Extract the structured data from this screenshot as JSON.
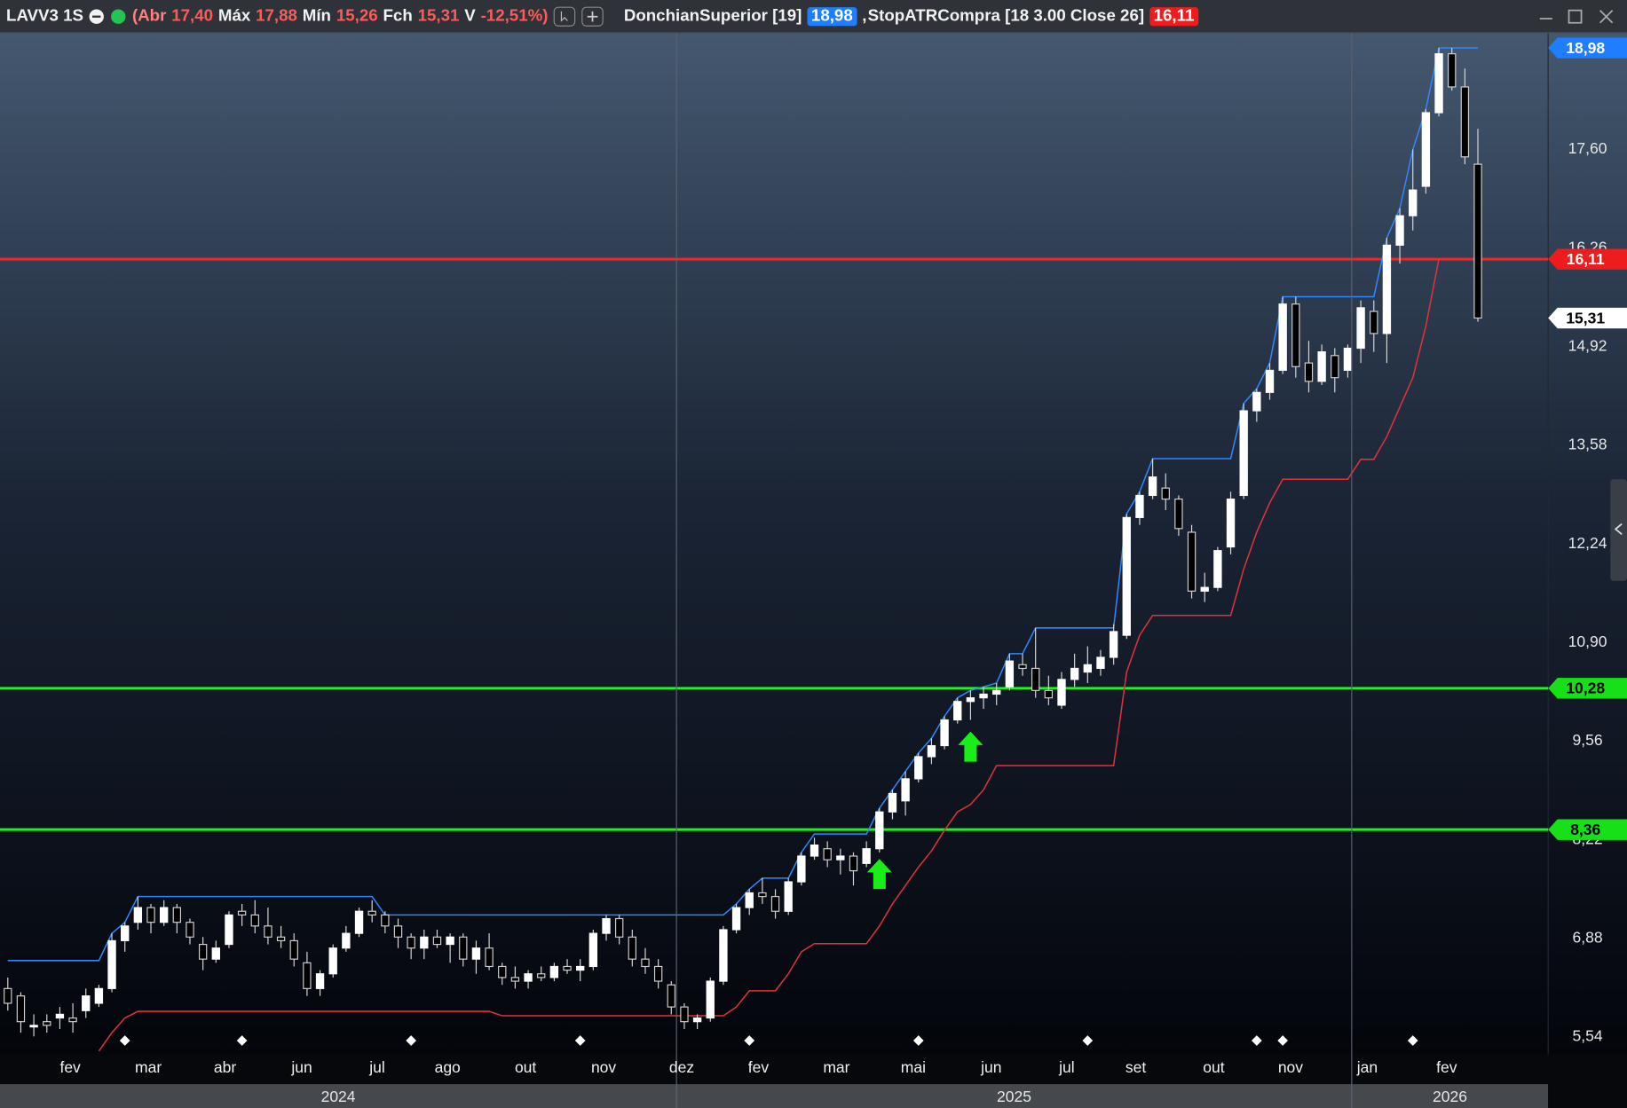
{
  "header": {
    "symbol": "LAVV3 1S",
    "open_label": "(Abr",
    "open": "17,40",
    "high_label": "Máx",
    "high": "17,88",
    "low_label": "Mín",
    "low": "15,26",
    "close_label": "Fch",
    "close": "15,31",
    "change_label": "V",
    "change": "-12,51%)",
    "separator": ","
  },
  "chart_data": {
    "type": "candlestick",
    "xlim": [
      -0.6,
      118.4
    ],
    "ylim": [
      5.31,
      19.18
    ],
    "yticks": [
      {
        "value": 5.54,
        "label": "5,54"
      },
      {
        "value": 6.88,
        "label": "6,88"
      },
      {
        "value": 8.22,
        "label": "8,22"
      },
      {
        "value": 9.56,
        "label": "9,56"
      },
      {
        "value": 10.9,
        "label": "10,90"
      },
      {
        "value": 12.24,
        "label": "12,24"
      },
      {
        "value": 13.58,
        "label": "13,58"
      },
      {
        "value": 14.92,
        "label": "14,92"
      },
      {
        "value": 16.26,
        "label": "16,26"
      },
      {
        "value": 17.6,
        "label": "17,60"
      }
    ],
    "xticks": [
      {
        "value": 4.8,
        "label": "fev"
      },
      {
        "value": 10.8,
        "label": "mar"
      },
      {
        "value": 16.7,
        "label": "abr"
      },
      {
        "value": 22.6,
        "label": "jun"
      },
      {
        "value": 28.4,
        "label": "jul"
      },
      {
        "value": 33.8,
        "label": "ago"
      },
      {
        "value": 39.8,
        "label": "out"
      },
      {
        "value": 45.8,
        "label": "nov"
      },
      {
        "value": 51.8,
        "label": "dez"
      },
      {
        "value": 57.7,
        "label": "fev"
      },
      {
        "value": 63.7,
        "label": "mar"
      },
      {
        "value": 69.6,
        "label": "mai"
      },
      {
        "value": 75.6,
        "label": "jun"
      },
      {
        "value": 81.4,
        "label": "jul"
      },
      {
        "value": 86.7,
        "label": "set"
      },
      {
        "value": 92.7,
        "label": "out"
      },
      {
        "value": 98.6,
        "label": "nov"
      },
      {
        "value": 104.5,
        "label": "jan"
      },
      {
        "value": 110.6,
        "label": "fev"
      }
    ],
    "year_ticks": [
      {
        "value": -0.6,
        "label": "2024"
      },
      {
        "value": 51.4,
        "label": "2025"
      },
      {
        "value": 103.3,
        "label": "2026"
      }
    ],
    "candles": [
      [
        6.2,
        6.35,
        5.9,
        6.0
      ],
      [
        6.1,
        6.15,
        5.6,
        5.75
      ],
      [
        5.7,
        5.85,
        5.55,
        5.7
      ],
      [
        5.75,
        5.85,
        5.6,
        5.7
      ],
      [
        5.8,
        5.95,
        5.65,
        5.85
      ],
      [
        5.8,
        6.0,
        5.6,
        5.75
      ],
      [
        5.9,
        6.2,
        5.8,
        6.1
      ],
      [
        6.0,
        6.25,
        5.95,
        6.2
      ],
      [
        6.2,
        6.95,
        6.15,
        6.85
      ],
      [
        6.85,
        7.1,
        6.7,
        7.05
      ],
      [
        7.1,
        7.45,
        7.0,
        7.3
      ],
      [
        7.3,
        7.35,
        6.95,
        7.1
      ],
      [
        7.1,
        7.4,
        7.05,
        7.3
      ],
      [
        7.3,
        7.35,
        6.95,
        7.1
      ],
      [
        7.1,
        7.15,
        6.8,
        6.9
      ],
      [
        6.8,
        6.9,
        6.45,
        6.6
      ],
      [
        6.6,
        6.85,
        6.55,
        6.75
      ],
      [
        6.8,
        7.25,
        6.75,
        7.2
      ],
      [
        7.25,
        7.35,
        7.05,
        7.2
      ],
      [
        7.2,
        7.4,
        6.95,
        7.05
      ],
      [
        7.05,
        7.3,
        6.8,
        6.9
      ],
      [
        6.9,
        7.05,
        6.75,
        6.85
      ],
      [
        6.85,
        6.95,
        6.5,
        6.6
      ],
      [
        6.55,
        6.7,
        6.1,
        6.2
      ],
      [
        6.2,
        6.45,
        6.1,
        6.4
      ],
      [
        6.4,
        6.8,
        6.35,
        6.75
      ],
      [
        6.75,
        7.05,
        6.7,
        6.95
      ],
      [
        6.95,
        7.3,
        6.9,
        7.25
      ],
      [
        7.25,
        7.4,
        7.1,
        7.2
      ],
      [
        7.2,
        7.25,
        6.95,
        7.05
      ],
      [
        7.05,
        7.15,
        6.75,
        6.9
      ],
      [
        6.9,
        6.95,
        6.6,
        6.75
      ],
      [
        6.75,
        7.0,
        6.6,
        6.9
      ],
      [
        6.9,
        7.0,
        6.75,
        6.8
      ],
      [
        6.8,
        6.95,
        6.55,
        6.9
      ],
      [
        6.9,
        6.95,
        6.5,
        6.6
      ],
      [
        6.6,
        6.85,
        6.4,
        6.75
      ],
      [
        6.75,
        6.95,
        6.45,
        6.5
      ],
      [
        6.5,
        6.55,
        6.25,
        6.35
      ],
      [
        6.35,
        6.5,
        6.2,
        6.3
      ],
      [
        6.3,
        6.45,
        6.2,
        6.4
      ],
      [
        6.4,
        6.5,
        6.3,
        6.35
      ],
      [
        6.35,
        6.55,
        6.3,
        6.5
      ],
      [
        6.5,
        6.6,
        6.4,
        6.45
      ],
      [
        6.45,
        6.6,
        6.3,
        6.5
      ],
      [
        6.5,
        7.0,
        6.45,
        6.95
      ],
      [
        6.95,
        7.2,
        6.85,
        7.15
      ],
      [
        7.15,
        7.2,
        6.8,
        6.9
      ],
      [
        6.9,
        7.0,
        6.5,
        6.6
      ],
      [
        6.6,
        6.75,
        6.4,
        6.5
      ],
      [
        6.5,
        6.6,
        6.2,
        6.3
      ],
      [
        6.25,
        6.3,
        5.85,
        5.95
      ],
      [
        5.95,
        6.0,
        5.65,
        5.75
      ],
      [
        5.75,
        5.85,
        5.65,
        5.8
      ],
      [
        5.8,
        6.35,
        5.75,
        6.3
      ],
      [
        6.3,
        7.05,
        6.25,
        7.0
      ],
      [
        7.0,
        7.35,
        6.95,
        7.3
      ],
      [
        7.3,
        7.55,
        7.2,
        7.5
      ],
      [
        7.5,
        7.7,
        7.35,
        7.45
      ],
      [
        7.45,
        7.55,
        7.15,
        7.25
      ],
      [
        7.25,
        7.7,
        7.2,
        7.65
      ],
      [
        7.65,
        8.05,
        7.6,
        8.0
      ],
      [
        8.0,
        8.25,
        7.95,
        8.15
      ],
      [
        8.1,
        8.2,
        7.85,
        7.95
      ],
      [
        7.95,
        8.1,
        7.75,
        8.0
      ],
      [
        8.0,
        8.05,
        7.6,
        7.8
      ],
      [
        7.9,
        8.2,
        7.85,
        8.1
      ],
      [
        8.1,
        8.65,
        8.05,
        8.6
      ],
      [
        8.6,
        8.9,
        8.5,
        8.85
      ],
      [
        8.75,
        9.15,
        8.55,
        9.05
      ],
      [
        9.05,
        9.4,
        9.0,
        9.35
      ],
      [
        9.35,
        9.6,
        9.25,
        9.5
      ],
      [
        9.5,
        9.9,
        9.45,
        9.85
      ],
      [
        9.85,
        10.15,
        9.8,
        10.1
      ],
      [
        10.1,
        10.25,
        9.85,
        10.15
      ],
      [
        10.15,
        10.3,
        10.0,
        10.2
      ],
      [
        10.2,
        10.35,
        10.05,
        10.25
      ],
      [
        10.3,
        10.75,
        10.25,
        10.65
      ],
      [
        10.6,
        10.75,
        10.45,
        10.55
      ],
      [
        10.55,
        11.1,
        10.15,
        10.25
      ],
      [
        10.25,
        10.45,
        10.05,
        10.15
      ],
      [
        10.05,
        10.5,
        10.0,
        10.4
      ],
      [
        10.4,
        10.75,
        10.3,
        10.55
      ],
      [
        10.5,
        10.85,
        10.35,
        10.6
      ],
      [
        10.55,
        10.8,
        10.45,
        10.7
      ],
      [
        10.7,
        11.15,
        10.6,
        11.05
      ],
      [
        11.0,
        12.65,
        10.95,
        12.6
      ],
      [
        12.6,
        12.95,
        12.5,
        12.9
      ],
      [
        12.9,
        13.4,
        12.85,
        13.15
      ],
      [
        13.0,
        13.2,
        12.7,
        12.85
      ],
      [
        12.85,
        12.9,
        12.35,
        12.45
      ],
      [
        12.4,
        12.5,
        11.5,
        11.6
      ],
      [
        11.6,
        11.85,
        11.45,
        11.65
      ],
      [
        11.65,
        12.2,
        11.6,
        12.15
      ],
      [
        12.2,
        12.95,
        12.1,
        12.85
      ],
      [
        12.9,
        14.15,
        12.85,
        14.05
      ],
      [
        14.05,
        14.35,
        13.9,
        14.3
      ],
      [
        14.3,
        14.7,
        14.2,
        14.6
      ],
      [
        14.6,
        15.6,
        14.55,
        15.5
      ],
      [
        15.5,
        15.6,
        14.5,
        14.65
      ],
      [
        14.7,
        15.0,
        14.3,
        14.45
      ],
      [
        14.45,
        14.95,
        14.4,
        14.85
      ],
      [
        14.8,
        14.9,
        14.3,
        14.5
      ],
      [
        14.6,
        14.95,
        14.5,
        14.9
      ],
      [
        14.9,
        15.55,
        14.7,
        15.45
      ],
      [
        15.4,
        15.55,
        14.85,
        15.1
      ],
      [
        15.1,
        16.4,
        14.7,
        16.3
      ],
      [
        16.3,
        16.8,
        16.05,
        16.7
      ],
      [
        16.7,
        17.6,
        16.5,
        17.05
      ],
      [
        17.1,
        18.15,
        17.0,
        18.1
      ],
      [
        18.1,
        18.98,
        18.05,
        18.9
      ],
      [
        18.9,
        18.98,
        18.4,
        18.45
      ],
      [
        18.45,
        18.7,
        17.4,
        17.5
      ],
      [
        17.4,
        17.88,
        15.26,
        15.31
      ]
    ],
    "series": [
      {
        "name": "DonchianSuperior [19]",
        "color": "#2f86ff",
        "values": [
          6.58,
          6.58,
          6.58,
          6.58,
          6.58,
          6.58,
          6.58,
          6.58,
          6.95,
          7.1,
          7.45,
          7.45,
          7.45,
          7.45,
          7.45,
          7.45,
          7.45,
          7.45,
          7.45,
          7.45,
          7.45,
          7.45,
          7.45,
          7.45,
          7.45,
          7.45,
          7.45,
          7.45,
          7.45,
          7.2,
          7.2,
          7.2,
          7.2,
          7.2,
          7.2,
          7.2,
          7.2,
          7.2,
          7.2,
          7.2,
          7.2,
          7.2,
          7.2,
          7.2,
          7.2,
          7.2,
          7.2,
          7.2,
          7.2,
          7.2,
          7.2,
          7.2,
          7.2,
          7.2,
          7.2,
          7.2,
          7.35,
          7.55,
          7.7,
          7.7,
          7.7,
          8.05,
          8.3,
          8.3,
          8.3,
          8.3,
          8.3,
          8.65,
          8.9,
          9.15,
          9.4,
          9.6,
          9.9,
          10.15,
          10.25,
          10.3,
          10.35,
          10.75,
          10.75,
          11.1,
          11.1,
          11.1,
          11.1,
          11.1,
          11.1,
          11.1,
          12.65,
          12.95,
          13.4,
          13.4,
          13.4,
          13.4,
          13.4,
          13.4,
          13.4,
          14.15,
          14.35,
          14.7,
          15.6,
          15.6,
          15.6,
          15.6,
          15.6,
          15.6,
          15.6,
          15.6,
          16.4,
          16.8,
          17.6,
          18.15,
          18.98,
          18.98,
          18.98,
          18.98
        ]
      },
      {
        "name": "StopATRCompra [18 3.00 Close 26]",
        "color": "#e0323a",
        "values": [
          null,
          null,
          null,
          null,
          null,
          null,
          null,
          5.35,
          5.6,
          5.8,
          5.89,
          5.89,
          5.89,
          5.89,
          5.89,
          5.89,
          5.89,
          5.89,
          5.89,
          5.89,
          5.89,
          5.89,
          5.89,
          5.89,
          5.89,
          5.89,
          5.89,
          5.89,
          5.89,
          5.89,
          5.89,
          5.89,
          5.89,
          5.89,
          5.89,
          5.89,
          5.89,
          5.89,
          5.83,
          5.83,
          5.83,
          5.83,
          5.83,
          5.83,
          5.83,
          5.83,
          5.83,
          5.83,
          5.83,
          5.83,
          5.83,
          5.83,
          5.83,
          5.83,
          5.83,
          5.83,
          5.95,
          6.17,
          6.17,
          6.17,
          6.4,
          6.7,
          6.81,
          6.81,
          6.81,
          6.81,
          6.81,
          7.05,
          7.35,
          7.6,
          7.85,
          8.07,
          8.35,
          8.6,
          8.7,
          8.9,
          9.23,
          9.23,
          9.23,
          9.23,
          9.23,
          9.23,
          9.23,
          9.23,
          9.23,
          9.23,
          10.5,
          11.0,
          11.27,
          11.27,
          11.27,
          11.27,
          11.27,
          11.27,
          11.27,
          11.9,
          12.4,
          12.8,
          13.12,
          13.12,
          13.12,
          13.12,
          13.12,
          13.12,
          13.39,
          13.39,
          13.7,
          14.1,
          14.5,
          15.2,
          16.11,
          null,
          null,
          null
        ]
      }
    ],
    "hlines": [
      {
        "value": 16.11,
        "color": "#ff1f1f"
      },
      {
        "value": 10.28,
        "color": "#22f022"
      },
      {
        "value": 8.36,
        "color": "#22f022"
      }
    ],
    "price_labels": [
      {
        "value": 18.98,
        "label": "18,98",
        "color": "#1f7dff"
      },
      {
        "value": 16.11,
        "label": "16,11",
        "color": "#ee1c1c"
      },
      {
        "value": 15.31,
        "label": "15,31",
        "color": "#ffffff"
      },
      {
        "value": 10.28,
        "label": "10,28",
        "color": "#18e018"
      },
      {
        "value": 8.36,
        "label": "8,36",
        "color": "#18e018"
      }
    ],
    "signals": [
      {
        "x": 67,
        "y": 7.75,
        "color": "#19ee19"
      },
      {
        "x": 74,
        "y": 9.48,
        "color": "#19ee19"
      }
    ],
    "events": [
      9,
      18,
      31,
      44,
      57,
      70,
      83,
      96,
      98,
      108
    ]
  }
}
